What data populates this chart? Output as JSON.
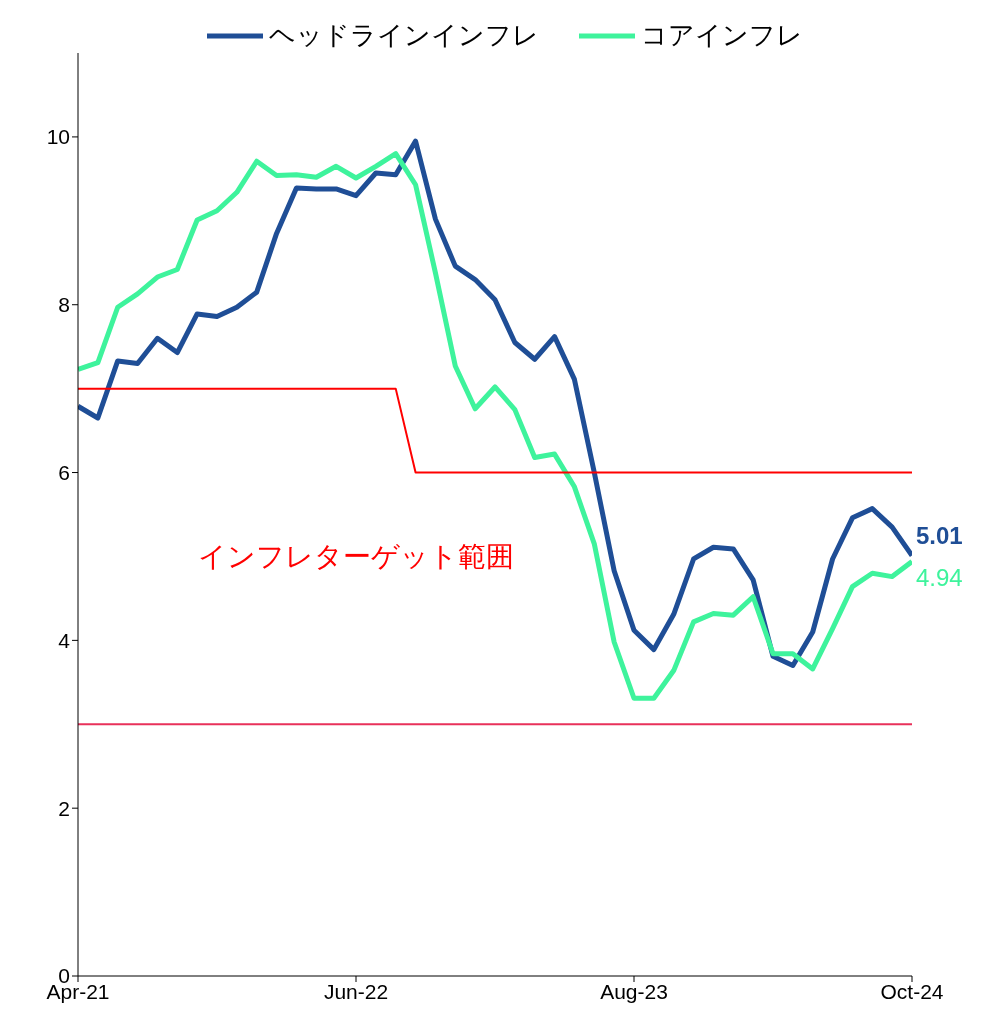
{
  "chart_data": {
    "type": "line",
    "x": [
      "2021-04",
      "2021-05",
      "2021-06",
      "2021-07",
      "2021-08",
      "2021-09",
      "2021-10",
      "2021-11",
      "2021-12",
      "2022-01",
      "2022-02",
      "2022-03",
      "2022-04",
      "2022-05",
      "2022-06",
      "2022-07",
      "2022-08",
      "2022-09",
      "2022-10",
      "2022-11",
      "2022-12",
      "2023-01",
      "2023-02",
      "2023-03",
      "2023-04",
      "2023-05",
      "2023-06",
      "2023-07",
      "2023-08",
      "2023-09",
      "2023-10",
      "2023-11",
      "2023-12",
      "2024-01",
      "2024-02",
      "2024-03",
      "2024-04",
      "2024-05",
      "2024-06",
      "2024-07",
      "2024-08",
      "2024-09",
      "2024-10"
    ],
    "series": [
      {
        "name": "ヘッドラインインフレ",
        "color": "#1f4e96",
        "values": [
          6.79,
          6.65,
          7.33,
          7.3,
          7.6,
          7.43,
          7.89,
          7.86,
          7.97,
          8.15,
          8.85,
          9.39,
          9.38,
          9.38,
          9.3,
          9.57,
          9.55,
          9.95,
          9.02,
          8.46,
          8.3,
          8.06,
          7.55,
          7.35,
          7.62,
          7.11,
          6.0,
          4.83,
          4.12,
          3.89,
          4.31,
          4.97,
          5.11,
          5.09,
          4.72,
          3.81,
          3.7,
          4.1,
          4.97,
          5.46,
          5.57,
          5.35,
          5.01
        ],
        "value_labels": [
          null,
          null,
          null,
          null,
          null,
          null,
          null,
          null,
          null,
          null,
          null,
          null,
          null,
          null,
          null,
          null,
          null,
          null,
          null,
          null,
          null,
          null,
          null,
          null,
          null,
          null,
          null,
          null,
          null,
          null,
          null,
          null,
          null,
          null,
          null,
          null,
          null,
          null,
          null,
          null,
          null,
          null,
          "5.01"
        ]
      },
      {
        "name": "コアインフレ",
        "color": "#3ef39c",
        "values": [
          7.23,
          7.31,
          7.97,
          8.13,
          8.33,
          8.42,
          9.01,
          9.12,
          9.34,
          9.71,
          9.54,
          9.55,
          9.52,
          9.65,
          9.51,
          9.65,
          9.8,
          9.43,
          8.38,
          7.27,
          6.76,
          7.02,
          6.75,
          6.18,
          6.22,
          5.83,
          5.15,
          3.98,
          3.31,
          3.31,
          3.64,
          4.22,
          4.32,
          4.3,
          4.52,
          3.84,
          3.84,
          3.66,
          4.14,
          4.64,
          4.8,
          4.76,
          4.94
        ],
        "value_labels": [
          null,
          null,
          null,
          null,
          null,
          null,
          null,
          null,
          null,
          null,
          null,
          null,
          null,
          null,
          null,
          null,
          null,
          null,
          null,
          null,
          null,
          null,
          null,
          null,
          null,
          null,
          null,
          null,
          null,
          null,
          null,
          null,
          null,
          null,
          null,
          null,
          null,
          null,
          null,
          null,
          null,
          null,
          "4.94"
        ]
      },
      {
        "color": "#ff0000",
        "values": [
          7,
          7,
          7,
          7,
          7,
          7,
          7,
          7,
          7,
          7,
          7,
          7,
          7,
          7,
          7,
          7,
          7,
          6,
          6,
          6,
          6,
          6,
          6,
          6,
          6,
          6,
          6,
          6,
          6,
          6,
          6,
          6,
          6,
          6,
          6,
          6,
          6,
          6,
          6,
          6,
          6,
          6,
          6
        ]
      }
    ],
    "ref_lines": [
      {
        "axis": "y",
        "value": 3,
        "color": "#e8315a"
      }
    ],
    "annotations": [
      "インフレターゲット範囲"
    ],
    "xlim": [
      "2021-04",
      "2024-10"
    ],
    "xticks": [
      {
        "value": "2021-04",
        "label": "Apr-21"
      },
      {
        "value": "2022-06",
        "label": "Jun-22"
      },
      {
        "value": "2023-08",
        "label": "Aug-23"
      },
      {
        "value": "2024-10",
        "label": "Oct-24"
      }
    ],
    "ylim": [
      0,
      11
    ],
    "yticks": [
      0,
      2,
      4,
      6,
      8,
      10
    ],
    "grid": false,
    "legend": "top",
    "marker": "none",
    "line_style": "solid"
  }
}
